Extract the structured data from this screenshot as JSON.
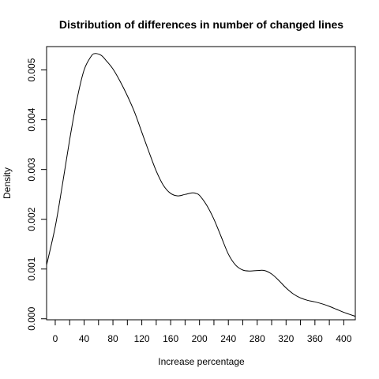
{
  "chart_data": {
    "type": "line",
    "title": "Distribution of differences in number of changed lines",
    "xlabel": "Increase percentage",
    "ylabel": "Density",
    "xlim": [
      -12,
      416
    ],
    "ylim": [
      -2e-05,
      0.00547
    ],
    "x_minor_tick_step": 20,
    "x_ticks": [
      0,
      40,
      80,
      120,
      160,
      200,
      240,
      280,
      320,
      360,
      400
    ],
    "x_tick_labels": [
      "0",
      "40",
      "80",
      "120",
      "160",
      "200",
      "240",
      "280",
      "320",
      "360",
      "400"
    ],
    "y_ticks": [
      0,
      0.001,
      0.002,
      0.003,
      0.004,
      0.005
    ],
    "y_tick_labels": [
      "0.000",
      "0.001",
      "0.002",
      "0.003",
      "0.004",
      "0.005"
    ],
    "grid": false,
    "legend": "none",
    "line_color": "#000000",
    "series": [
      {
        "x": [
          -12,
          0,
          10,
          20,
          30,
          40,
          50,
          55,
          60,
          65,
          70,
          80,
          90,
          100,
          110,
          120,
          130,
          140,
          150,
          160,
          170,
          180,
          190,
          195,
          200,
          210,
          220,
          230,
          240,
          250,
          260,
          270,
          280,
          290,
          300,
          310,
          320,
          330,
          340,
          350,
          360,
          370,
          380,
          390,
          400,
          416
        ],
        "y": [
          0.00108,
          0.00185,
          0.0027,
          0.0036,
          0.0044,
          0.005,
          0.00528,
          0.00533,
          0.00532,
          0.00528,
          0.0052,
          0.00502,
          0.00477,
          0.00448,
          0.00415,
          0.00375,
          0.00335,
          0.00297,
          0.00268,
          0.00252,
          0.00247,
          0.0025,
          0.00253,
          0.00252,
          0.00248,
          0.00228,
          0.002,
          0.00165,
          0.0013,
          0.00108,
          0.00098,
          0.00096,
          0.00097,
          0.00097,
          0.0009,
          0.00077,
          0.00062,
          0.0005,
          0.00042,
          0.00037,
          0.00034,
          0.0003,
          0.00025,
          0.00019,
          0.00013,
          5e-05
        ]
      }
    ]
  }
}
